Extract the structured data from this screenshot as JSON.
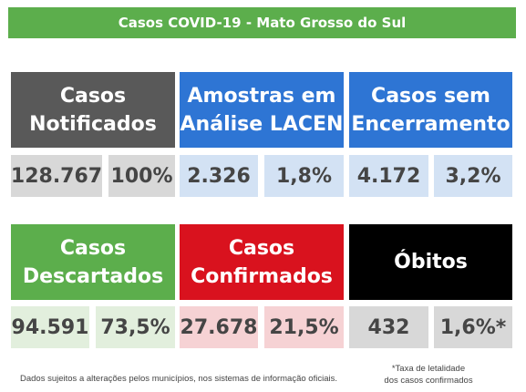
{
  "banner": {
    "title": "Casos COVID-19 - Mato Grosso do Sul"
  },
  "cards": [
    {
      "title": "Casos\nNotificados",
      "value": "128.767",
      "percent": "100%",
      "color": "#595959",
      "value_bg": "#d8d8d8"
    },
    {
      "title": "Amostras em\nAnálise LACEN",
      "value": "2.326",
      "percent": "1,8%",
      "color": "#2e75d4",
      "value_bg": "#d3e2f4"
    },
    {
      "title": "Casos sem\nEncerramento",
      "value": "4.172",
      "percent": "3,2%",
      "color": "#2e75d4",
      "value_bg": "#d3e2f4"
    },
    {
      "title": "Casos\nDescartados",
      "value": "94.591",
      "percent": "73,5%",
      "color": "#5cae4c",
      "value_bg": "#e2efdd"
    },
    {
      "title": "Casos\nConfirmados",
      "value": "27.678",
      "percent": "21,5%",
      "color": "#d9121e",
      "value_bg": "#f6d2d4"
    },
    {
      "title": "Óbitos",
      "value": "432",
      "percent": "1,6%*",
      "color": "#000000",
      "value_bg": "#d8d8d8"
    }
  ],
  "footer": {
    "disclaimer": "Dados sujeitos a alterações pelos municípios, nos sistemas de informação oficiais.",
    "note_line1": "*Taxa de letalidade",
    "note_line2": "dos casos confirmados"
  }
}
